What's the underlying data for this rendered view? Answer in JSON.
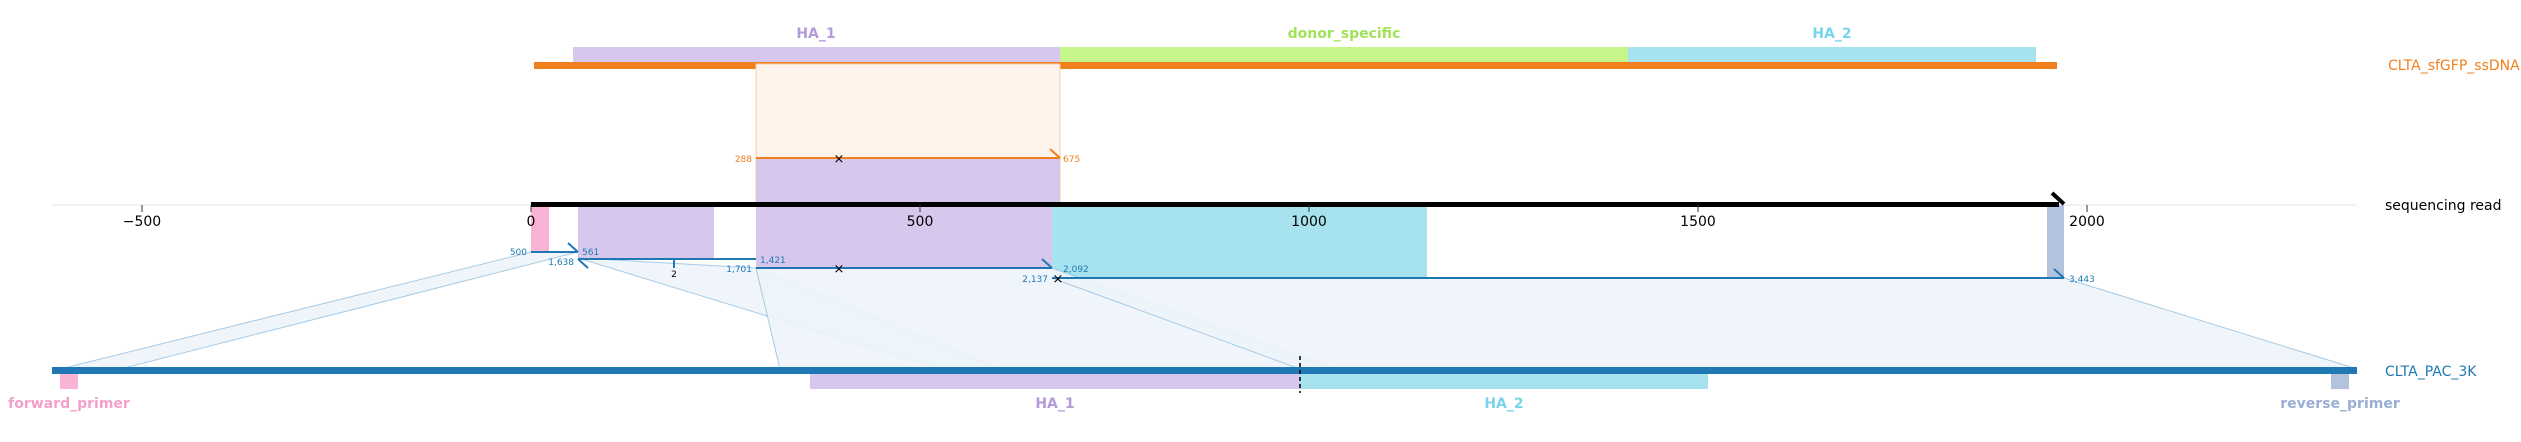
{
  "tracks": {
    "donor": {
      "label": "CLTA_sfGFP_ssDNA",
      "color": "#f07f1e"
    },
    "read": {
      "label": "sequencing read",
      "color": "#000000"
    },
    "reference": {
      "label": "CLTA_PAC_3K",
      "color": "#1f78b4"
    }
  },
  "donor_features": [
    {
      "label": "HA_1",
      "color": "#d8c7ec",
      "text_color": "#b39ad9",
      "start": 40,
      "end": 687
    },
    {
      "label": "donor_specific",
      "color": "#c6f58b",
      "text_color": "#a2e259",
      "start": 687,
      "end": 1420
    },
    {
      "label": "HA_2",
      "color": "#a6e3ee",
      "text_color": "#79d4ea",
      "start": 1420,
      "end": 1950
    }
  ],
  "read_axis": {
    "ticks": [
      {
        "value": -500,
        "label": "−500"
      },
      {
        "value": 0,
        "label": "0"
      },
      {
        "value": 500,
        "label": "500"
      },
      {
        "value": 1000,
        "label": "1000"
      },
      {
        "value": 1500,
        "label": "1500"
      },
      {
        "value": 2000,
        "label": "2000"
      }
    ]
  },
  "read_features": [
    {
      "name": "forward-primer-block",
      "color": "#f9b3d6",
      "start": 0,
      "end": 24
    },
    {
      "name": "ha1-block-a",
      "color": "#d8c7ec",
      "start": 60,
      "end": 235
    },
    {
      "name": "ha1-block-b",
      "color": "#d8c7ec",
      "start": 283,
      "end": 677
    },
    {
      "name": "ha2-block",
      "color": "#a6e3ee",
      "start": 677,
      "end": 1158
    },
    {
      "name": "reverse-primer-block",
      "color": "#b3c3dd",
      "start": 1960,
      "end": 1981
    }
  ],
  "donor_alignment": {
    "read_start": 288,
    "read_end": 677,
    "start_label": "288",
    "end_label": "675"
  },
  "reference_alignments": [
    {
      "read_start_label": "500",
      "read_start_label2": "1,638",
      "read_mid_label": "561",
      "read_label_a": "1,421",
      "read_label_b": "1,701",
      "insertion_label": "2"
    },
    {
      "read_start_label": "2,092",
      "read_start_label2": "2,137",
      "read_end_label": "3,443"
    }
  ],
  "reference_features": [
    {
      "label": "forward_primer",
      "color": "#f9b3d6",
      "text_color": "#f59fcc"
    },
    {
      "label": "HA_1",
      "color": "#d8c7ec",
      "text_color": "#b39ad9"
    },
    {
      "label": "HA_2",
      "color": "#a6e3ee",
      "text_color": "#79d4ea"
    },
    {
      "label": "reverse_primer",
      "color": "#b3c3dd",
      "text_color": "#98aed3"
    }
  ]
}
